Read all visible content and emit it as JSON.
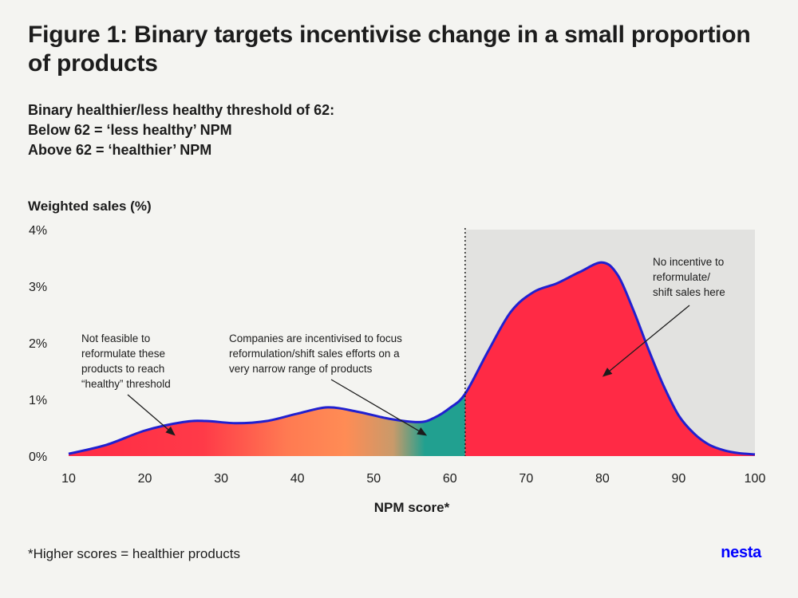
{
  "title": "Figure 1: Binary targets incentivise change in a small proportion of products",
  "subtitle_lines": [
    "Binary healthier/less healthy threshold of 62:",
    "Below 62 = ‘less healthy’ NPM",
    "Above 62 = ‘healthier’ NPM"
  ],
  "footnote": "*Higher scores = healthier products",
  "logo": "nesta",
  "colors": {
    "red": "#ff2a45",
    "orange": "#ff8c55",
    "teal": "#21a090",
    "outline": "#2020d0",
    "shade": "#e2e2e0",
    "background": "#f4f4f1"
  },
  "chart_data": {
    "type": "area",
    "title": "Weighted sales (%)",
    "xlabel": "NPM score*",
    "ylabel": "Weighted sales (%)",
    "xlim": [
      10,
      100
    ],
    "ylim": [
      0,
      4
    ],
    "x_ticks": [
      10,
      20,
      30,
      40,
      50,
      60,
      70,
      80,
      90,
      100
    ],
    "y_ticks": [
      "0%",
      "1%",
      "2%",
      "3%",
      "4%"
    ],
    "threshold": 62,
    "x": [
      10,
      15,
      20,
      25,
      28,
      32,
      36,
      40,
      44,
      48,
      52,
      56,
      58,
      60,
      62,
      65,
      68,
      71,
      74,
      77,
      80,
      82,
      84,
      86,
      88,
      90,
      92,
      94,
      96,
      98,
      100
    ],
    "values": [
      0.04,
      0.2,
      0.45,
      0.6,
      0.62,
      0.58,
      0.62,
      0.75,
      0.86,
      0.78,
      0.66,
      0.6,
      0.68,
      0.85,
      1.1,
      1.85,
      2.55,
      2.9,
      3.05,
      3.25,
      3.42,
      3.2,
      2.6,
      1.9,
      1.25,
      0.72,
      0.4,
      0.2,
      0.1,
      0.05,
      0.03
    ],
    "annotations": [
      {
        "lines": [
          "Not feasible to",
          "reformulate these",
          "products to reach",
          "“healthy” threshold"
        ],
        "target_x": 24,
        "target_y": 0.36
      },
      {
        "lines": [
          "Companies are incentivised to focus",
          "reformulation/shift sales efforts on a",
          "very narrow range of products"
        ],
        "target_x": 57,
        "target_y": 0.36
      },
      {
        "lines": [
          "No incentive to",
          "reformulate/",
          "shift sales here"
        ],
        "target_x": 80,
        "target_y": 1.4
      }
    ]
  }
}
